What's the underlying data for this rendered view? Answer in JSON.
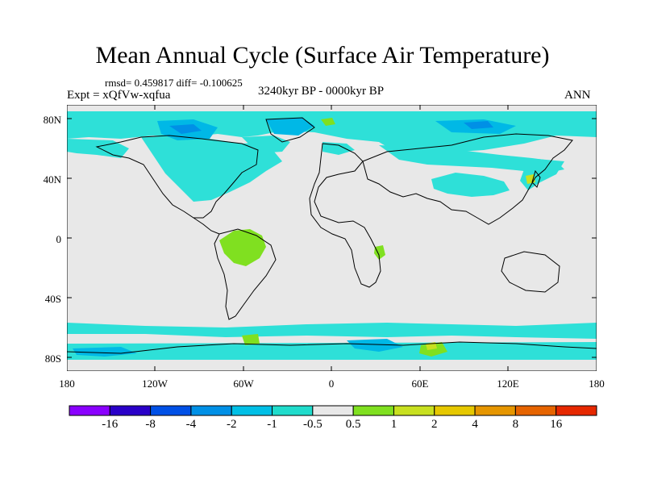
{
  "title": "Mean Annual Cycle (Surface Air Temperature)",
  "stats": "rmsd= 0.459817 diff= -0.100625",
  "expt": "Expt = xQfVw-xqfua",
  "period": "3240kyr BP - 0000kyr BP",
  "season": "ANN",
  "axes": {
    "y_ticks": [
      "80N",
      "40N",
      "0",
      "40S",
      "80S"
    ],
    "x_ticks": [
      "180",
      "120W",
      "60W",
      "0",
      "60E",
      "120E",
      "180"
    ]
  },
  "colorbar": {
    "colors": [
      "#8a00ff",
      "#2a00c8",
      "#0050e6",
      "#0090e6",
      "#00bfe6",
      "#20dccc",
      "#e8e8e8",
      "#80e020",
      "#c8e020",
      "#e6c800",
      "#e69600",
      "#e66400",
      "#e62800"
    ],
    "labels": [
      "-16",
      "-8",
      "-4",
      "-2",
      "-1",
      "-0.5",
      "0.5",
      "1",
      "2",
      "4",
      "8",
      "16"
    ]
  },
  "map_colors": {
    "ocean_land_bg": "#e8e8e8",
    "cool_anomaly": "#2ee0d8",
    "cool_strong": "#00b8e6",
    "cooler": "#0090e6",
    "warm_anomaly": "#80e020",
    "warmer": "#c8e020"
  }
}
